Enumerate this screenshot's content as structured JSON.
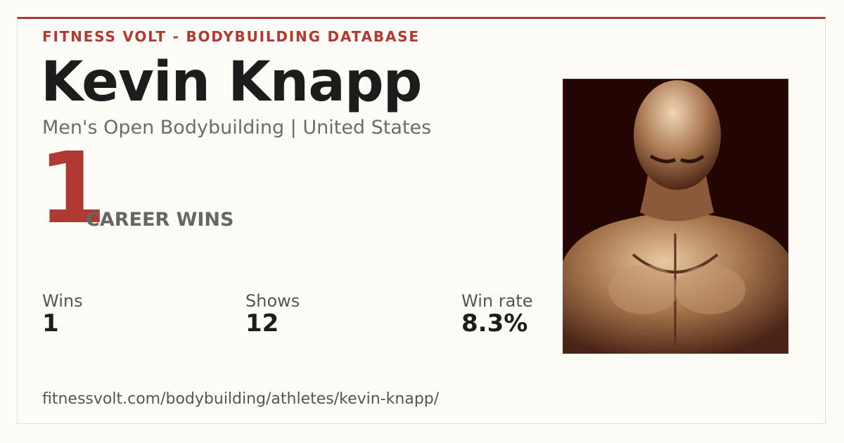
{
  "header": {
    "brand": "FITNESS VOLT - BODYBUILDING DATABASE",
    "name": "Kevin Knapp",
    "subtitle": "Men's Open Bodybuilding | United States"
  },
  "highlight": {
    "value": "1",
    "label": "CAREER WINS"
  },
  "stats": [
    {
      "label": "Wins",
      "value": "1"
    },
    {
      "label": "Shows",
      "value": "12"
    },
    {
      "label": "Win rate",
      "value": "8.3%"
    }
  ],
  "footer": {
    "url": "fitnessvolt.com/bodybuilding/athletes/kevin-knapp/"
  }
}
